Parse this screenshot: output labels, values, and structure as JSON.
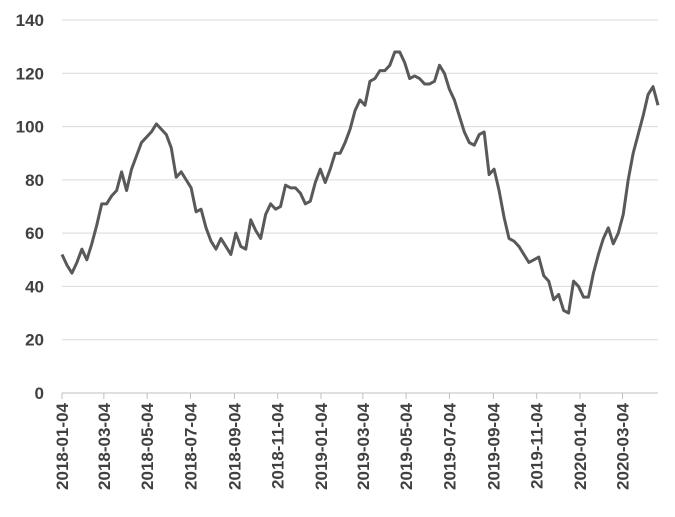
{
  "chart_data": {
    "type": "line",
    "x": [
      "2018-01-04",
      "2018-01-11",
      "2018-01-18",
      "2018-01-25",
      "2018-02-01",
      "2018-02-08",
      "2018-02-15",
      "2018-02-22",
      "2018-03-01",
      "2018-03-08",
      "2018-03-15",
      "2018-03-22",
      "2018-03-29",
      "2018-04-05",
      "2018-04-12",
      "2018-04-19",
      "2018-04-26",
      "2018-05-03",
      "2018-05-10",
      "2018-05-17",
      "2018-05-24",
      "2018-05-31",
      "2018-06-07",
      "2018-06-14",
      "2018-06-21",
      "2018-06-28",
      "2018-07-05",
      "2018-07-12",
      "2018-07-19",
      "2018-07-26",
      "2018-08-02",
      "2018-08-09",
      "2018-08-16",
      "2018-08-23",
      "2018-08-30",
      "2018-09-06",
      "2018-09-13",
      "2018-09-20",
      "2018-09-27",
      "2018-10-04",
      "2018-10-11",
      "2018-10-18",
      "2018-10-25",
      "2018-11-01",
      "2018-11-08",
      "2018-11-15",
      "2018-11-22",
      "2018-11-29",
      "2018-12-06",
      "2018-12-13",
      "2018-12-20",
      "2018-12-27",
      "2019-01-03",
      "2019-01-10",
      "2019-01-17",
      "2019-01-24",
      "2019-01-31",
      "2019-02-07",
      "2019-02-14",
      "2019-02-21",
      "2019-02-28",
      "2019-03-07",
      "2019-03-14",
      "2019-03-21",
      "2019-03-28",
      "2019-04-04",
      "2019-04-11",
      "2019-04-18",
      "2019-04-25",
      "2019-05-02",
      "2019-05-09",
      "2019-05-16",
      "2019-05-23",
      "2019-05-30",
      "2019-06-06",
      "2019-06-13",
      "2019-06-20",
      "2019-06-27",
      "2019-07-04",
      "2019-07-11",
      "2019-07-18",
      "2019-07-25",
      "2019-08-01",
      "2019-08-08",
      "2019-08-15",
      "2019-08-22",
      "2019-08-29",
      "2019-09-05",
      "2019-09-12",
      "2019-09-19",
      "2019-09-26",
      "2019-10-03",
      "2019-10-10",
      "2019-10-17",
      "2019-10-24",
      "2019-10-31",
      "2019-11-07",
      "2019-11-14",
      "2019-11-21",
      "2019-11-28",
      "2019-12-05",
      "2019-12-12",
      "2019-12-19",
      "2019-12-26",
      "2020-01-02",
      "2020-01-09",
      "2020-01-16",
      "2020-01-23",
      "2020-01-30",
      "2020-02-06",
      "2020-02-13",
      "2020-02-20",
      "2020-02-27",
      "2020-03-05",
      "2020-03-12",
      "2020-03-19",
      "2020-03-26",
      "2020-04-02",
      "2020-04-09",
      "2020-04-16",
      "2020-04-23"
    ],
    "series": [
      {
        "color": "#595959",
        "values": [
          52,
          48,
          45,
          49,
          54,
          50,
          56,
          63,
          71,
          71,
          74,
          76,
          83,
          76,
          84,
          89,
          94,
          96,
          98,
          101,
          99,
          97,
          92,
          81,
          83,
          80,
          77,
          68,
          69,
          62,
          57,
          54,
          58,
          55,
          52,
          60,
          55,
          54,
          65,
          61,
          58,
          67,
          71,
          69,
          70,
          78,
          77,
          77,
          75,
          71,
          72,
          79,
          84,
          79,
          84,
          90,
          90,
          94,
          99,
          106,
          110,
          108,
          117,
          118,
          121,
          121,
          123,
          128,
          128,
          124,
          118,
          119,
          118,
          116,
          116,
          117,
          123,
          120,
          114,
          110,
          104,
          98,
          94,
          93,
          97,
          98,
          82,
          84,
          76,
          66,
          58,
          57,
          55,
          52,
          49,
          50,
          51,
          44,
          42,
          35,
          37,
          31,
          30,
          42,
          40,
          36,
          36,
          45,
          52,
          58,
          62,
          56,
          60,
          67,
          80,
          90,
          97,
          104,
          112,
          115,
          108
        ]
      }
    ],
    "xlim": [
      "2018-01-04",
      "2020-04-23"
    ],
    "xticks": [
      "2018-01-04",
      "2018-03-04",
      "2018-05-04",
      "2018-07-04",
      "2018-09-04",
      "2018-11-04",
      "2019-01-04",
      "2019-03-04",
      "2019-05-04",
      "2019-07-04",
      "2019-09-04",
      "2019-11-04",
      "2020-01-04",
      "2020-03-04"
    ],
    "ylim": [
      0,
      140
    ],
    "yticks": [
      0,
      20,
      40,
      60,
      80,
      100,
      120,
      140
    ],
    "grid": true
  }
}
